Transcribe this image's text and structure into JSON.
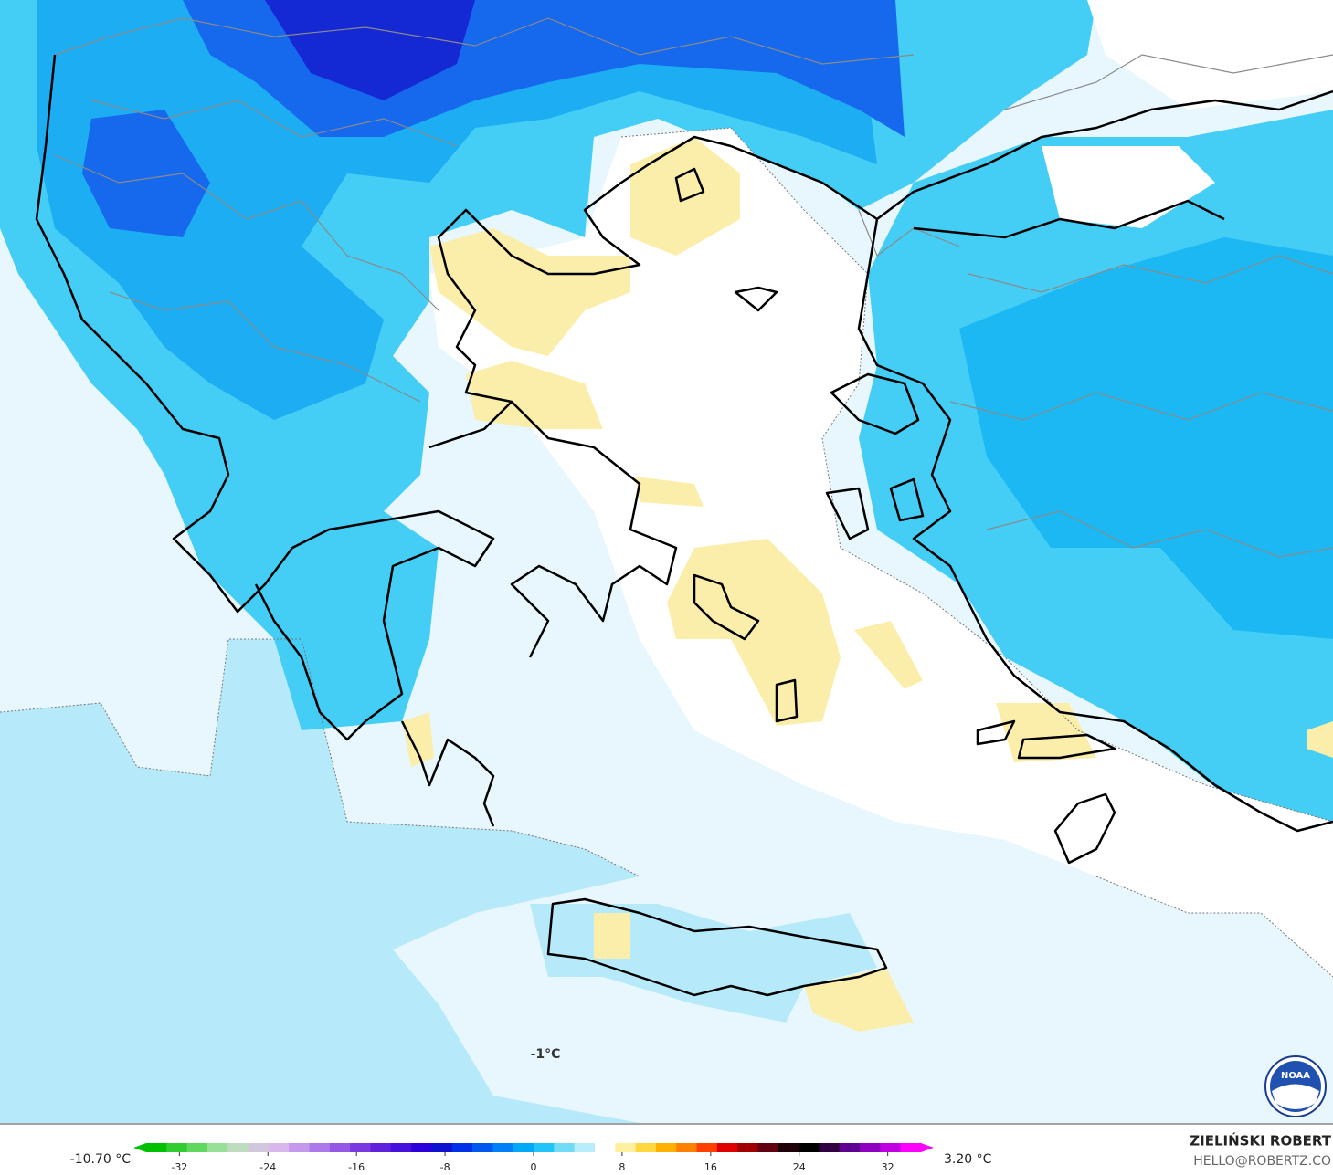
{
  "map": {
    "label": "-1°C"
  },
  "colorbar": {
    "min_label": "-10.70 °C",
    "max_label": "3.20 °C",
    "lim": [
      -35,
      35
    ],
    "ticks": [
      -32,
      -24,
      -16,
      -8,
      0,
      8,
      16,
      24,
      32
    ],
    "colors": [
      "#00c000",
      "#30cc30",
      "#60d860",
      "#98e098",
      "#c0dcc0",
      "#d0c8dc",
      "#d8b8ec",
      "#c498ec",
      "#ac78ea",
      "#9458e4",
      "#7c38e0",
      "#6020dc",
      "#4810dc",
      "#2c00dc",
      "#1010d0",
      "#0030e8",
      "#0058f0",
      "#0080f8",
      "#00a8f8",
      "#20c4f8",
      "#70dcf8",
      "#b8eefc",
      "#ffffff",
      "#fff0a0",
      "#ffd840",
      "#ffb000",
      "#ff8000",
      "#ff4000",
      "#e00000",
      "#a00000",
      "#600010",
      "#200008",
      "#000000",
      "#300040",
      "#600090",
      "#9000c0",
      "#c000e0",
      "#ff00ff"
    ]
  },
  "credit": {
    "name": "ZIELIŃSKI ROBERT",
    "email": "HELLO@ROBERTZ.CO"
  },
  "logo": {
    "text": "NOAA"
  }
}
